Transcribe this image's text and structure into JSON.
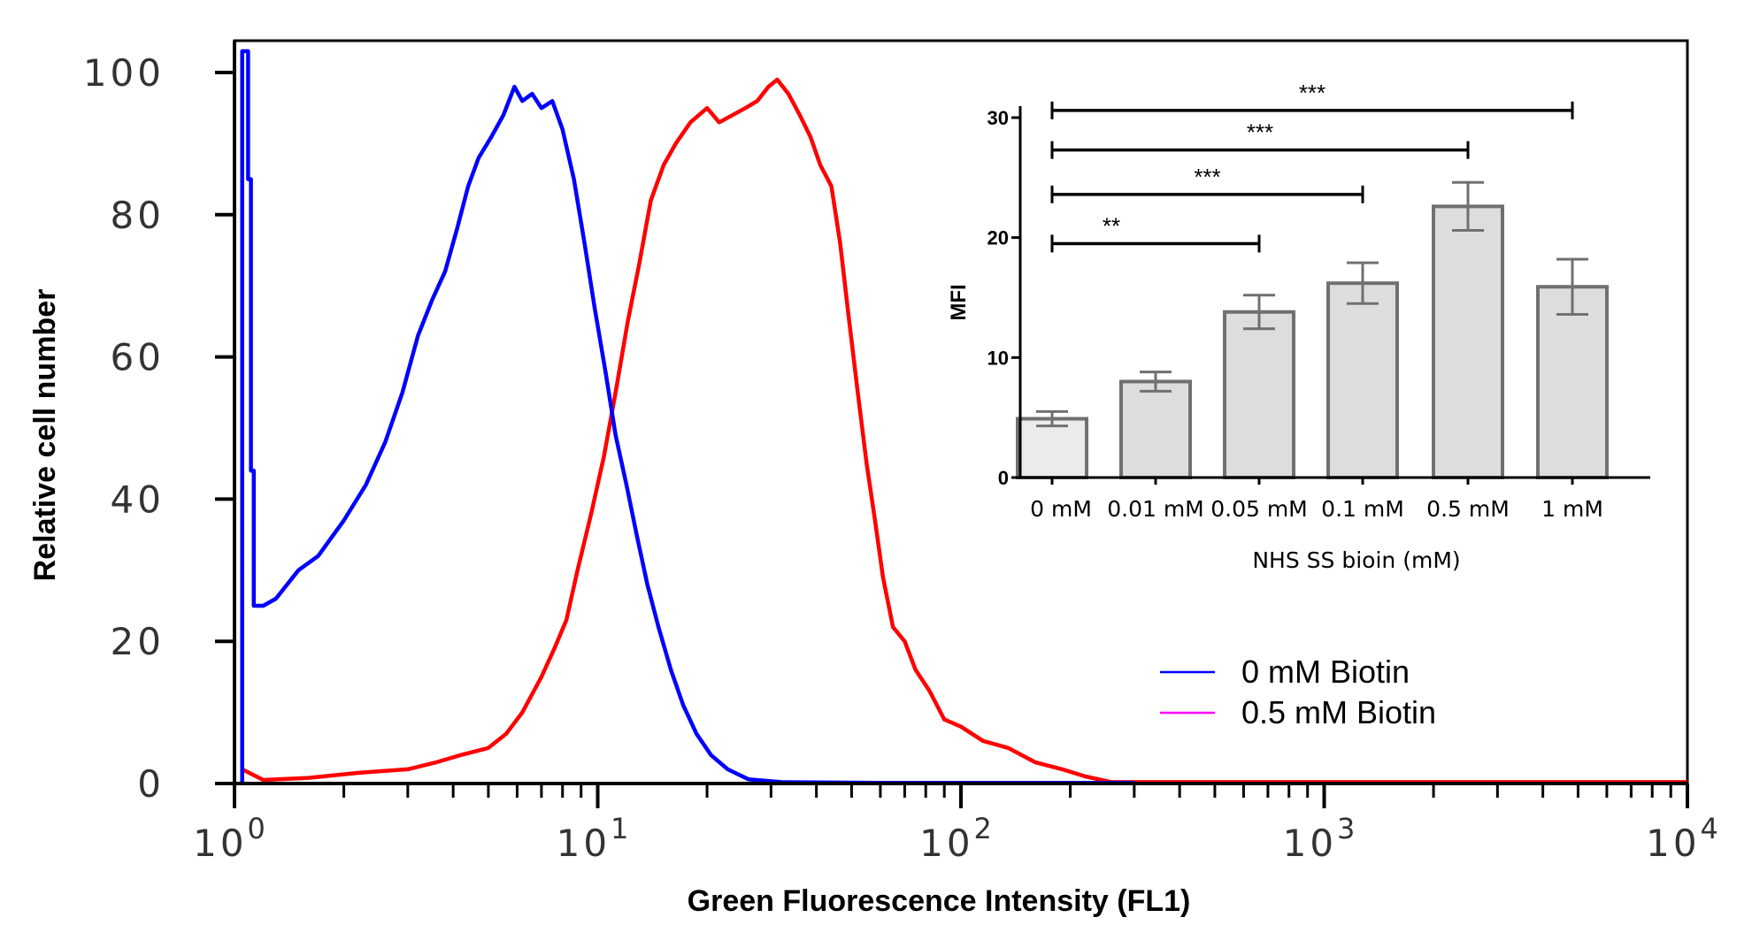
{
  "chart_data": [
    {
      "type": "line",
      "title": "",
      "xlabel": "Green Fluorescence Intensity (FL1)",
      "ylabel": "Relative cell number",
      "xscale": "log",
      "xlim": [
        1,
        10000
      ],
      "ylim": [
        0,
        100
      ],
      "x_ticks": [
        {
          "base": "10",
          "exp": "0"
        },
        {
          "base": "10",
          "exp": "1"
        },
        {
          "base": "10",
          "exp": "2"
        },
        {
          "base": "10",
          "exp": "3"
        },
        {
          "base": "10",
          "exp": "4"
        }
      ],
      "y_ticks": [
        "0",
        "20",
        "40",
        "60",
        "80",
        "100"
      ],
      "legend_position": "bottom-right",
      "series": [
        {
          "name": "0 mM Biotin",
          "color": "#0000ff",
          "legend_color": "#0000ff",
          "points": [
            [
              1.05,
              0
            ],
            [
              1.05,
              103
            ],
            [
              1.09,
              103
            ],
            [
              1.09,
              85
            ],
            [
              1.11,
              85
            ],
            [
              1.11,
              44
            ],
            [
              1.13,
              44
            ],
            [
              1.13,
              25
            ],
            [
              1.2,
              25
            ],
            [
              1.3,
              26
            ],
            [
              1.5,
              30
            ],
            [
              1.7,
              32
            ],
            [
              2.0,
              37
            ],
            [
              2.3,
              42
            ],
            [
              2.6,
              48
            ],
            [
              2.9,
              55
            ],
            [
              3.2,
              63
            ],
            [
              3.5,
              68
            ],
            [
              3.8,
              72
            ],
            [
              4.1,
              78
            ],
            [
              4.4,
              84
            ],
            [
              4.7,
              88
            ],
            [
              5.1,
              91
            ],
            [
              5.5,
              94
            ],
            [
              5.9,
              98
            ],
            [
              6.2,
              96
            ],
            [
              6.6,
              97
            ],
            [
              7.0,
              95
            ],
            [
              7.5,
              96
            ],
            [
              8.0,
              92
            ],
            [
              8.6,
              85
            ],
            [
              9.2,
              76
            ],
            [
              9.8,
              67
            ],
            [
              10.5,
              58
            ],
            [
              11.2,
              49
            ],
            [
              12.0,
              42
            ],
            [
              12.8,
              35
            ],
            [
              13.7,
              28
            ],
            [
              14.7,
              22
            ],
            [
              15.9,
              16
            ],
            [
              17.2,
              11
            ],
            [
              18.7,
              7
            ],
            [
              20.5,
              4
            ],
            [
              22.8,
              2
            ],
            [
              26.0,
              0.6
            ],
            [
              32.0,
              0.2
            ],
            [
              60.0,
              0.1
            ],
            [
              300.0,
              0.1
            ]
          ]
        },
        {
          "name": "0.5 mM Biotin",
          "color": "#ff0000",
          "legend_color": "#ff00ff",
          "points": [
            [
              1.05,
              2
            ],
            [
              1.2,
              0.5
            ],
            [
              1.6,
              0.8
            ],
            [
              2.2,
              1.5
            ],
            [
              3.0,
              2
            ],
            [
              3.6,
              3
            ],
            [
              4.2,
              4
            ],
            [
              5.0,
              5
            ],
            [
              5.6,
              7
            ],
            [
              6.2,
              10
            ],
            [
              7.0,
              15
            ],
            [
              7.6,
              19
            ],
            [
              8.2,
              23
            ],
            [
              8.8,
              30
            ],
            [
              9.6,
              38
            ],
            [
              10.4,
              46
            ],
            [
              11.2,
              55
            ],
            [
              12.1,
              65
            ],
            [
              13.0,
              73
            ],
            [
              14.0,
              82
            ],
            [
              15.2,
              87
            ],
            [
              16.4,
              90
            ],
            [
              18.0,
              93
            ],
            [
              20.0,
              95
            ],
            [
              21.6,
              93
            ],
            [
              23.5,
              94
            ],
            [
              25.5,
              95
            ],
            [
              27.5,
              96
            ],
            [
              29.5,
              98
            ],
            [
              31.2,
              99
            ],
            [
              33.5,
              97
            ],
            [
              36.0,
              94
            ],
            [
              38.5,
              91
            ],
            [
              41.0,
              87
            ],
            [
              44.0,
              84
            ],
            [
              46.5,
              76
            ],
            [
              49.0,
              66
            ],
            [
              52.0,
              55
            ],
            [
              55.0,
              45
            ],
            [
              58.0,
              37
            ],
            [
              61.0,
              29
            ],
            [
              65.0,
              22
            ],
            [
              70.0,
              20
            ],
            [
              75.0,
              16
            ],
            [
              82.0,
              13
            ],
            [
              90.0,
              9
            ],
            [
              100.0,
              8
            ],
            [
              115.0,
              6
            ],
            [
              135.0,
              5
            ],
            [
              160.0,
              3
            ],
            [
              190.0,
              2
            ],
            [
              220.0,
              1
            ],
            [
              260.0,
              0.2
            ],
            [
              10000.0,
              0.2
            ]
          ]
        }
      ]
    },
    {
      "type": "bar",
      "title": "",
      "xlabel": "NHS SS bioin (mM)",
      "ylabel": "MFI",
      "categories": [
        "0 mM",
        "0.01 mM",
        "0.05 mM",
        "0.1 mM",
        "0.5 mM",
        "1 mM"
      ],
      "values": [
        4.9,
        8.0,
        13.8,
        16.2,
        22.6,
        15.9
      ],
      "errors": [
        0.6,
        0.8,
        1.4,
        1.7,
        2.0,
        2.3
      ],
      "ylim": [
        0,
        32
      ],
      "y_ticks": [
        "0",
        "10",
        "20",
        "30"
      ],
      "significance": [
        {
          "from": "0 mM",
          "to": "0.05 mM",
          "label": "**",
          "y": 19.5
        },
        {
          "from": "0 mM",
          "to": "0.1 mM",
          "label": "***",
          "y": 23.6
        },
        {
          "from": "0 mM",
          "to": "0.5 mM",
          "label": "***",
          "y": 27.3
        },
        {
          "from": "0 mM",
          "to": "1 mM",
          "label": "***",
          "y": 30.6
        }
      ]
    }
  ]
}
